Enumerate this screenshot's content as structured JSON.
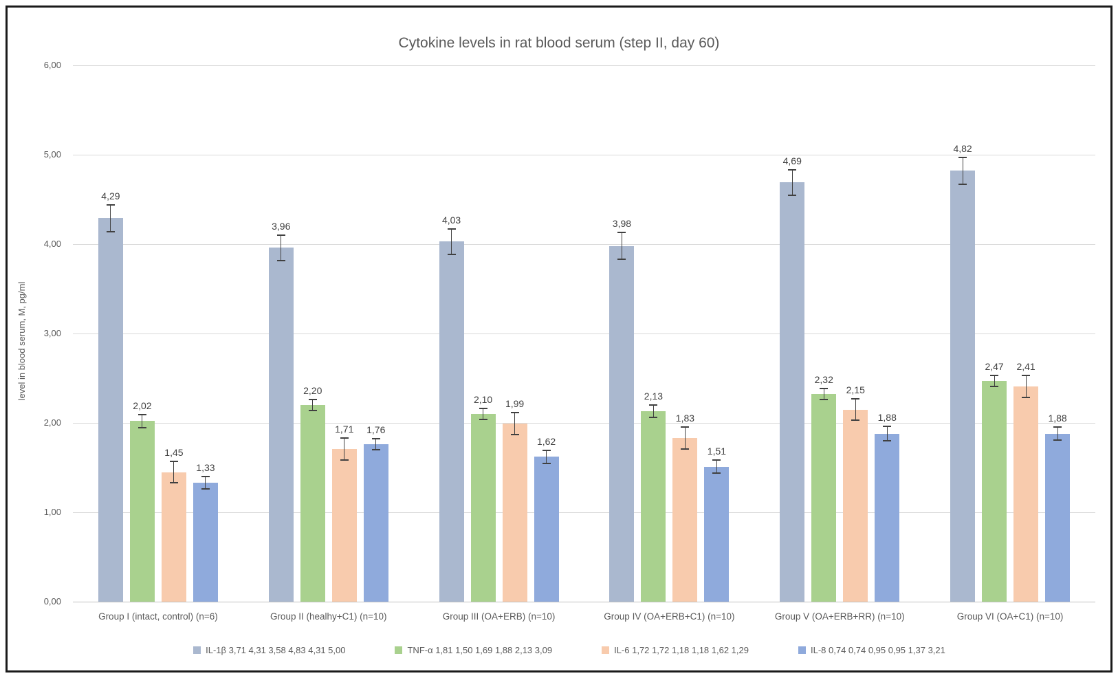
{
  "chart_data": {
    "type": "bar",
    "title": "Cytokine levels in rat blood serum (step II, day 60)",
    "xlabel": "",
    "ylabel": "level in blood serum, M, pg/ml",
    "ylim": [
      0,
      6
    ],
    "ytick_step": 1,
    "ytick_labels": [
      "0,00",
      "1,00",
      "2,00",
      "3,00",
      "4,00",
      "5,00",
      "6,00"
    ],
    "grid": true,
    "legend_position": "bottom",
    "error_bars": true,
    "decimal_separator": ",",
    "categories": [
      "Group I (intact, control) (n=6)",
      "Group II (healhy+C1) (n=10)",
      "Group III (OA+ERB) (n=10)",
      "Group IV (OA+ERB+C1) (n=10)",
      "Group V (OA+ERB+RR) (n=10)",
      "Group VI (OA+C1) (n=10)"
    ],
    "series": [
      {
        "name": "IL-1β 3,71 4,31 3,58 4,83 4,31 5,00",
        "short_name": "IL-1β",
        "color": "#aab8cf",
        "values": [
          4.29,
          3.96,
          4.03,
          3.98,
          4.69,
          4.82
        ],
        "value_labels": [
          "4,29",
          "3,96",
          "4,03",
          "3,98",
          "4,69",
          "4,82"
        ],
        "errors": [
          0.16,
          0.15,
          0.15,
          0.16,
          0.15,
          0.16
        ]
      },
      {
        "name": "TNF-α 1,81 1,50 1,69 1,88 2,13 3,09",
        "short_name": "TNF-α",
        "color": "#a9d18e",
        "values": [
          2.02,
          2.2,
          2.1,
          2.13,
          2.32,
          2.47
        ],
        "value_labels": [
          "2,02",
          "2,20",
          "2,10",
          "2,13",
          "2,32",
          "2,47"
        ],
        "errors": [
          0.08,
          0.07,
          0.07,
          0.08,
          0.07,
          0.07
        ]
      },
      {
        "name": "IL-6 1,72 1,72 1,18 1,18 1,62 1,29",
        "short_name": "IL-6",
        "color": "#f8cbad",
        "values": [
          1.45,
          1.71,
          1.99,
          1.83,
          2.15,
          2.41
        ],
        "value_labels": [
          "1,45",
          "1,71",
          "1,99",
          "1,83",
          "2,15",
          "2,41"
        ],
        "errors": [
          0.13,
          0.13,
          0.13,
          0.13,
          0.13,
          0.13
        ]
      },
      {
        "name": "IL-8 0,74 0,74 0,95 0,95 1,37 3,21",
        "short_name": "IL-8",
        "color": "#8faadc",
        "values": [
          1.33,
          1.76,
          1.62,
          1.51,
          1.88,
          1.88
        ],
        "value_labels": [
          "1,33",
          "1,76",
          "1,62",
          "1,51",
          "1,88",
          "1,88"
        ],
        "errors": [
          0.08,
          0.07,
          0.08,
          0.08,
          0.09,
          0.08
        ]
      }
    ]
  },
  "layout_colors": {
    "gridline": "#d9d9d9",
    "axis_line": "#bfbfbf",
    "text_gray": "#595959",
    "label_dark": "#404040",
    "frame_border": "#1a1a1a"
  }
}
